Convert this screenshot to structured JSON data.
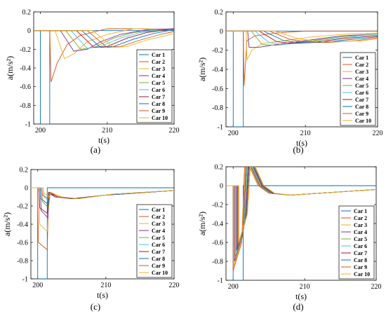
{
  "chart_data": [
    {
      "type": "line",
      "panel_label": "(a)",
      "xlabel": "t(s)",
      "ylabel": "a(m/s²)",
      "xlim": [
        199,
        220
      ],
      "ylim": [
        -1,
        0.2
      ],
      "x_ticks": [
        200,
        210,
        220
      ],
      "y_ticks": [
        0.2,
        0,
        -0.2,
        -0.4,
        -0.6,
        -0.8,
        -1
      ],
      "grid": false,
      "legend_position": "right",
      "series": [
        {
          "name": "Car 1",
          "color": "#0072BD",
          "x": [
            199,
            200,
            200,
            201.4,
            201.4,
            220
          ],
          "y": [
            0,
            0,
            -1,
            -1,
            0,
            0
          ]
        },
        {
          "name": "Car 2",
          "color": "#D95319",
          "x": [
            199,
            201.4,
            201.6,
            202.5,
            204,
            206,
            210,
            215,
            220
          ],
          "y": [
            0,
            0,
            -0.55,
            -0.35,
            -0.15,
            -0.05,
            0.02,
            0.02,
            0.01
          ]
        },
        {
          "name": "Car 3",
          "color": "#EDB120",
          "x": [
            199,
            202.2,
            203.6,
            205,
            207,
            210,
            214,
            220
          ],
          "y": [
            0,
            0,
            -0.3,
            -0.25,
            -0.12,
            -0.04,
            0.02,
            0.01
          ]
        },
        {
          "name": "Car 4",
          "color": "#7E2F8E",
          "x": [
            199,
            203,
            205,
            207,
            209,
            212,
            216,
            220
          ],
          "y": [
            0,
            0,
            -0.22,
            -0.2,
            -0.12,
            -0.04,
            0.01,
            0.02
          ]
        },
        {
          "name": "Car 5",
          "color": "#77AC30",
          "x": [
            199,
            203.8,
            206,
            208,
            211,
            214,
            220
          ],
          "y": [
            0,
            0,
            -0.2,
            -0.18,
            -0.08,
            -0.02,
            0.02
          ]
        },
        {
          "name": "Car 6",
          "color": "#4DBEEE",
          "x": [
            199,
            204.6,
            207,
            209,
            212,
            215,
            220
          ],
          "y": [
            0,
            0,
            -0.19,
            -0.17,
            -0.08,
            -0.02,
            0.02
          ]
        },
        {
          "name": "Car 7",
          "color": "#A2142F",
          "x": [
            199,
            205.4,
            208,
            210,
            213,
            216,
            220
          ],
          "y": [
            0,
            0,
            -0.18,
            -0.17,
            -0.08,
            -0.02,
            0.02
          ]
        },
        {
          "name": "Car 8",
          "color": "#0072BD",
          "x": [
            199,
            206.2,
            209,
            211,
            214,
            217,
            220
          ],
          "y": [
            0,
            0,
            -0.18,
            -0.17,
            -0.09,
            -0.03,
            0.01
          ]
        },
        {
          "name": "Car 9",
          "color": "#D95319",
          "x": [
            199,
            207,
            210,
            212,
            215,
            218,
            220
          ],
          "y": [
            0,
            0,
            -0.18,
            -0.17,
            -0.1,
            -0.04,
            -0.01
          ]
        },
        {
          "name": "Car 10",
          "color": "#EDB120",
          "x": [
            199,
            207.8,
            211,
            213,
            216,
            219,
            220
          ],
          "y": [
            0,
            0,
            -0.18,
            -0.17,
            -0.1,
            -0.05,
            -0.03
          ]
        }
      ]
    },
    {
      "type": "line",
      "panel_label": "(b)",
      "xlabel": "t(s)",
      "ylabel": "a(m/s²)",
      "xlim": [
        199,
        220
      ],
      "ylim": [
        -1,
        0.2
      ],
      "x_ticks": [
        200,
        210,
        220
      ],
      "y_ticks": [
        0.2,
        0,
        -0.2,
        -0.4,
        -0.6,
        -0.8,
        -1
      ],
      "grid": false,
      "legend_position": "right",
      "series": [
        {
          "name": "Car 1",
          "color": "#0072BD",
          "x": [
            199,
            200,
            200,
            201.4,
            201.4,
            220
          ],
          "y": [
            0,
            0,
            -1,
            -1,
            0,
            0
          ]
        },
        {
          "name": "Car 2",
          "color": "#D95319",
          "x": [
            199,
            201.4,
            201.5,
            201.9,
            203,
            206,
            210,
            215,
            220
          ],
          "y": [
            0,
            0,
            -0.57,
            -0.1,
            -0.05,
            -0.02,
            0,
            0,
            0
          ]
        },
        {
          "name": "Car 3",
          "color": "#EDB120",
          "x": [
            199,
            201.8,
            201.9,
            202.6,
            204,
            207,
            211,
            216,
            220
          ],
          "y": [
            0,
            0,
            -0.3,
            -0.2,
            -0.13,
            -0.1,
            -0.06,
            -0.03,
            -0.02
          ]
        },
        {
          "name": "Car 4",
          "color": "#7E2F8E",
          "x": [
            199,
            202,
            202.2,
            203.5,
            206,
            210,
            215,
            220
          ],
          "y": [
            0,
            0,
            -0.17,
            -0.17,
            -0.14,
            -0.1,
            -0.05,
            -0.03
          ]
        },
        {
          "name": "Car 5",
          "color": "#77AC30",
          "x": [
            199,
            202.5,
            204,
            206,
            210,
            215,
            220
          ],
          "y": [
            0,
            0,
            -0.14,
            -0.15,
            -0.11,
            -0.06,
            -0.03
          ]
        },
        {
          "name": "Car 6",
          "color": "#4DBEEE",
          "x": [
            199,
            203,
            205,
            207,
            210,
            215,
            220
          ],
          "y": [
            0,
            0,
            -0.12,
            -0.14,
            -0.12,
            -0.07,
            -0.04
          ]
        },
        {
          "name": "Car 7",
          "color": "#A2142F",
          "x": [
            199,
            203.6,
            206,
            208,
            211,
            215,
            220
          ],
          "y": [
            0,
            0,
            -0.11,
            -0.13,
            -0.12,
            -0.08,
            -0.05
          ]
        },
        {
          "name": "Car 8",
          "color": "#0072BD",
          "x": [
            199,
            204.2,
            207,
            209,
            212,
            216,
            220
          ],
          "y": [
            0,
            0,
            -0.1,
            -0.12,
            -0.12,
            -0.09,
            -0.06
          ]
        },
        {
          "name": "Car 9",
          "color": "#D95319",
          "x": [
            199,
            205,
            208,
            210,
            213,
            217,
            220
          ],
          "y": [
            0,
            0,
            -0.09,
            -0.11,
            -0.12,
            -0.1,
            -0.07
          ]
        },
        {
          "name": "Car 10",
          "color": "#EDB120",
          "x": [
            199,
            205.8,
            209,
            211,
            214,
            218,
            220
          ],
          "y": [
            0,
            0,
            -0.08,
            -0.1,
            -0.11,
            -0.1,
            -0.08
          ]
        }
      ]
    },
    {
      "type": "line",
      "panel_label": "(c)",
      "xlabel": "t(s)",
      "ylabel": "a(m/s²)",
      "xlim": [
        199,
        220
      ],
      "ylim": [
        -1,
        0.2
      ],
      "x_ticks": [
        200,
        210,
        220
      ],
      "y_ticks": [
        0.2,
        0,
        -0.2,
        -0.4,
        -0.6,
        -0.8,
        -1
      ],
      "grid": false,
      "legend_position": "right",
      "series": [
        {
          "name": "Car 1",
          "color": "#0072BD",
          "x": [
            199,
            200,
            200,
            201.4,
            201.4,
            220
          ],
          "y": [
            0,
            0,
            -1,
            -1,
            0,
            0
          ]
        },
        {
          "name": "Car 2",
          "color": "#D95319",
          "x": [
            199,
            200,
            200.1,
            201.4,
            201.6,
            202.5,
            205,
            210,
            220
          ],
          "y": [
            0,
            0,
            -0.6,
            -0.68,
            -0.05,
            -0.1,
            -0.12,
            -0.08,
            -0.03
          ]
        },
        {
          "name": "Car 3",
          "color": "#EDB120",
          "x": [
            199,
            200.2,
            200.3,
            201.4,
            201.6,
            202.5,
            205,
            210,
            220
          ],
          "y": [
            0,
            0,
            -0.4,
            -0.48,
            -0.06,
            -0.1,
            -0.12,
            -0.08,
            -0.03
          ]
        },
        {
          "name": "Car 4",
          "color": "#7E2F8E",
          "x": [
            199,
            200.4,
            200.5,
            201.5,
            201.7,
            203,
            205.5,
            210,
            220
          ],
          "y": [
            0,
            0,
            -0.25,
            -0.33,
            -0.06,
            -0.1,
            -0.12,
            -0.08,
            -0.03
          ]
        },
        {
          "name": "Car 5",
          "color": "#77AC30",
          "x": [
            199,
            200.6,
            200.7,
            201.6,
            201.8,
            203,
            206,
            211,
            220
          ],
          "y": [
            0,
            0,
            -0.15,
            -0.22,
            -0.05,
            -0.1,
            -0.12,
            -0.07,
            -0.03
          ]
        },
        {
          "name": "Car 6",
          "color": "#4DBEEE",
          "x": [
            199,
            200.8,
            200.9,
            201.7,
            201.9,
            203.5,
            206,
            211,
            220
          ],
          "y": [
            0,
            0,
            -0.1,
            -0.15,
            -0.05,
            -0.1,
            -0.12,
            -0.07,
            -0.03
          ]
        },
        {
          "name": "Car 7",
          "color": "#A2142F",
          "x": [
            199,
            200.2,
            200.3,
            201.4,
            201.6,
            202.5,
            205,
            210,
            220
          ],
          "y": [
            0,
            0,
            -0.22,
            -0.28,
            -0.05,
            -0.1,
            -0.12,
            -0.08,
            -0.03
          ]
        },
        {
          "name": "Car 8",
          "color": "#0072BD",
          "x": [
            199,
            200.4,
            200.5,
            201.5,
            201.7,
            203,
            205.5,
            210,
            220
          ],
          "y": [
            0,
            0,
            -0.12,
            -0.18,
            -0.05,
            -0.1,
            -0.12,
            -0.08,
            -0.03
          ]
        },
        {
          "name": "Car 9",
          "color": "#D95319",
          "x": [
            199,
            200.6,
            200.7,
            201.6,
            201.8,
            203,
            206,
            211,
            220
          ],
          "y": [
            0,
            0,
            -0.08,
            -0.12,
            -0.05,
            -0.1,
            -0.12,
            -0.07,
            -0.03
          ]
        },
        {
          "name": "Car 10",
          "color": "#EDB120",
          "x": [
            199,
            200.8,
            200.9,
            201.7,
            201.9,
            203.5,
            206,
            211,
            220
          ],
          "y": [
            0,
            0,
            -0.06,
            -0.1,
            -0.05,
            -0.1,
            -0.12,
            -0.07,
            -0.03
          ]
        }
      ]
    },
    {
      "type": "line",
      "panel_label": "(d)",
      "xlabel": "t(s)",
      "ylabel": "a(m/s²)",
      "xlim": [
        199,
        220
      ],
      "ylim": [
        -1,
        0.2
      ],
      "x_ticks": [
        200,
        210,
        220
      ],
      "y_ticks": [
        0.2,
        0,
        -0.2,
        -0.4,
        -0.6,
        -0.8,
        -1
      ],
      "grid": false,
      "legend_position": "right",
      "series": [
        {
          "name": "Car 1",
          "color": "#0072BD",
          "x": [
            199,
            200,
            200,
            201.4,
            201.4,
            220
          ],
          "y": [
            0,
            0,
            -1,
            -1,
            0,
            0
          ]
        },
        {
          "name": "Car 2",
          "color": "#D95319",
          "x": [
            199,
            200,
            200,
            201.2,
            201.6,
            202.3,
            203.5,
            205,
            208,
            212,
            220
          ],
          "y": [
            0,
            0,
            -0.9,
            -0.6,
            0.2,
            0.2,
            0,
            -0.08,
            -0.1,
            -0.08,
            -0.04
          ]
        },
        {
          "name": "Car 3",
          "color": "#EDB120",
          "x": [
            199,
            200.1,
            200.1,
            201.3,
            201.7,
            202.4,
            203.6,
            205.1,
            208,
            212,
            220
          ],
          "y": [
            0,
            0,
            -0.85,
            -0.55,
            0.2,
            0.2,
            0,
            -0.08,
            -0.1,
            -0.08,
            -0.04
          ]
        },
        {
          "name": "Car 4",
          "color": "#7E2F8E",
          "x": [
            199,
            200.2,
            200.2,
            201.4,
            201.8,
            202.5,
            203.7,
            205.2,
            208,
            212,
            220
          ],
          "y": [
            0,
            0,
            -0.8,
            -0.5,
            0.2,
            0.2,
            0,
            -0.08,
            -0.1,
            -0.08,
            -0.04
          ]
        },
        {
          "name": "Car 5",
          "color": "#77AC30",
          "x": [
            199,
            200.3,
            200.3,
            201.5,
            201.9,
            202.6,
            203.8,
            205.3,
            208,
            212,
            220
          ],
          "y": [
            0,
            0,
            -0.75,
            -0.45,
            0.2,
            0.2,
            0,
            -0.08,
            -0.1,
            -0.08,
            -0.04
          ]
        },
        {
          "name": "Car 6",
          "color": "#4DBEEE",
          "x": [
            199,
            200.4,
            200.4,
            201.6,
            202,
            202.7,
            203.9,
            205.4,
            208,
            212,
            220
          ],
          "y": [
            0,
            0,
            -0.7,
            -0.4,
            0.2,
            0.2,
            0,
            -0.08,
            -0.1,
            -0.08,
            -0.04
          ]
        },
        {
          "name": "Car 7",
          "color": "#A2142F",
          "x": [
            199,
            200.5,
            200.5,
            201.7,
            202.1,
            202.8,
            204,
            205.5,
            208,
            212,
            220
          ],
          "y": [
            0,
            0,
            -0.68,
            -0.38,
            0.2,
            0.2,
            0,
            -0.08,
            -0.1,
            -0.08,
            -0.04
          ]
        },
        {
          "name": "Car 8",
          "color": "#0072BD",
          "x": [
            199,
            200.6,
            200.6,
            201.8,
            202.2,
            202.9,
            204.1,
            205.6,
            208,
            212,
            220
          ],
          "y": [
            0,
            0,
            -0.65,
            -0.35,
            0.2,
            0.2,
            0,
            -0.08,
            -0.1,
            -0.08,
            -0.04
          ]
        },
        {
          "name": "Car 9",
          "color": "#D95319",
          "x": [
            199,
            200.7,
            200.7,
            201.9,
            202.3,
            203,
            204.2,
            205.7,
            208,
            212,
            220
          ],
          "y": [
            0,
            0,
            -0.62,
            -0.32,
            0.2,
            0.2,
            0,
            -0.08,
            -0.1,
            -0.08,
            -0.04
          ]
        },
        {
          "name": "Car 10",
          "color": "#EDB120",
          "x": [
            199,
            200.8,
            200.8,
            202,
            202.4,
            203.1,
            204.3,
            205.8,
            208,
            212,
            220
          ],
          "y": [
            0,
            0,
            -0.6,
            -0.3,
            0.2,
            0.2,
            0,
            -0.08,
            -0.1,
            -0.08,
            -0.04
          ]
        }
      ]
    }
  ]
}
